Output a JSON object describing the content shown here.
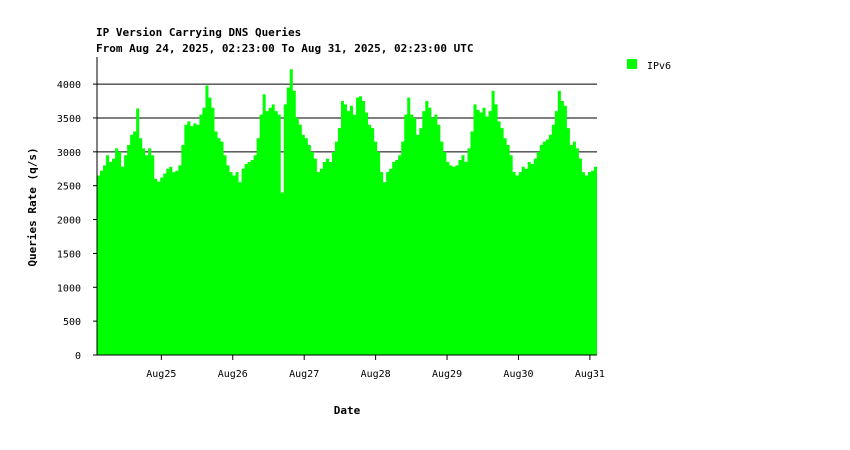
{
  "chart_data": {
    "type": "area",
    "title": "IP Version Carrying DNS Queries",
    "subtitle": "From Aug 24, 2025, 02:23:00 To Aug 31, 2025, 02:23:00 UTC",
    "xlabel": "Date",
    "ylabel": "Queries Rate (q/s)",
    "ylim": [
      0,
      4400
    ],
    "xlim": [
      "Aug 24, 2025, 02:23:00",
      "Aug 31, 2025, 02:23:00"
    ],
    "y_ticks": [
      0,
      500,
      1000,
      1500,
      2000,
      2500,
      3000,
      3500,
      4000
    ],
    "y_ticks_major_lines": [
      3000,
      3500,
      4000
    ],
    "x_ticks": [
      "Aug25",
      "Aug26",
      "Aug27",
      "Aug28",
      "Aug29",
      "Aug30",
      "Aug31"
    ],
    "x_tick_days": [
      1,
      2,
      3,
      4,
      5,
      6,
      7
    ],
    "legend_position": "top-right",
    "series": [
      {
        "name": "IPv6",
        "color": "#00ff00",
        "sample_interval_hours": 1,
        "start": "Aug 24, 2025, 02:23:00",
        "values": [
          2650,
          2720,
          2800,
          2950,
          2850,
          2900,
          3050,
          3000,
          2780,
          2950,
          3100,
          3250,
          3300,
          3640,
          3200,
          3050,
          2950,
          3050,
          2950,
          2600,
          2560,
          2620,
          2680,
          2750,
          2780,
          2700,
          2720,
          2800,
          3100,
          3400,
          3450,
          3380,
          3420,
          3400,
          3550,
          3650,
          3980,
          3800,
          3650,
          3300,
          3200,
          3150,
          2950,
          2800,
          2700,
          2650,
          2700,
          2550,
          2750,
          2820,
          2850,
          2880,
          2950,
          3200,
          3550,
          3850,
          3600,
          3650,
          3700,
          3600,
          3550,
          2400,
          3700,
          3950,
          4220,
          3900,
          3500,
          3400,
          3250,
          3200,
          3100,
          3000,
          2900,
          2700,
          2750,
          2850,
          2900,
          2850,
          3000,
          3150,
          3350,
          3750,
          3700,
          3600,
          3680,
          3550,
          3800,
          3820,
          3750,
          3580,
          3400,
          3350,
          3150,
          3000,
          2700,
          2550,
          2700,
          2750,
          2850,
          2880,
          2950,
          3150,
          3550,
          3800,
          3550,
          3500,
          3250,
          3350,
          3600,
          3750,
          3650,
          3500,
          3550,
          3400,
          3150,
          3000,
          2850,
          2800,
          2780,
          2800,
          2880,
          2950,
          2850,
          3050,
          3300,
          3700,
          3620,
          3580,
          3650,
          3520,
          3600,
          3900,
          3700,
          3450,
          3350,
          3200,
          3100,
          2950,
          2700,
          2650,
          2700,
          2780,
          2750,
          2850,
          2820,
          2900,
          3000,
          3100,
          3150,
          3180,
          3250,
          3400,
          3600,
          3900,
          3750,
          3680,
          3350,
          3100,
          3150,
          3050,
          2900,
          2700,
          2650,
          2700,
          2720,
          2780
        ]
      }
    ]
  }
}
